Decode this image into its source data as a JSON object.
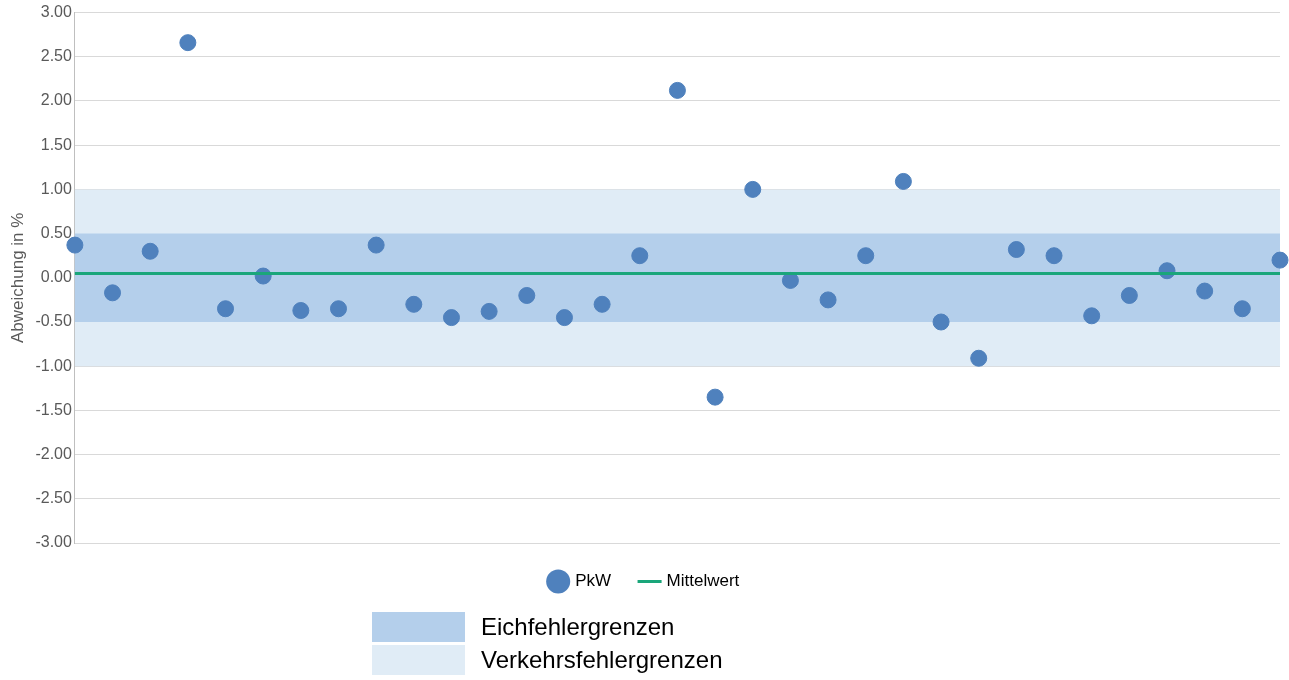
{
  "chart_data": {
    "type": "scatter",
    "ylabel": "Abweichung in %",
    "categories": [
      null,
      null,
      null,
      null,
      null,
      null,
      null,
      null,
      null,
      null,
      null,
      null,
      null,
      null,
      null,
      null,
      null,
      null,
      null,
      null,
      null,
      null,
      null,
      null,
      null,
      null,
      null,
      null,
      null,
      null,
      null,
      null,
      null
    ],
    "series": [
      {
        "name": "PkW",
        "color": "#4f81bd",
        "marker": "circle",
        "values": [
          0.37,
          -0.17,
          0.3,
          2.66,
          -0.35,
          0.02,
          -0.37,
          -0.35,
          0.37,
          -0.3,
          -0.45,
          -0.38,
          -0.2,
          -0.45,
          -0.3,
          0.25,
          2.12,
          -1.35,
          1.0,
          -0.03,
          -0.25,
          0.25,
          1.09,
          -0.5,
          -0.91,
          0.32,
          0.25,
          -0.43,
          -0.2,
          0.08,
          -0.15,
          -0.35,
          0.2
        ]
      },
      {
        "name": "Mittelwert",
        "type": "line",
        "color": "#1aa67a",
        "marker": "none",
        "line_style": "solid",
        "values": [
          0.05,
          0.05,
          0.05,
          0.05,
          0.05,
          0.05,
          0.05,
          0.05,
          0.05,
          0.05,
          0.05,
          0.05,
          0.05,
          0.05,
          0.05,
          0.05,
          0.05,
          0.05,
          0.05,
          0.05,
          0.05,
          0.05,
          0.05,
          0.05,
          0.05,
          0.05,
          0.05,
          0.05,
          0.05,
          0.05,
          0.05,
          0.05,
          0.05
        ]
      }
    ],
    "bands": [
      {
        "axis": "y",
        "from": -0.5,
        "to": 0.5,
        "label": "Eichfehlergrenzen",
        "color": "#b4cfeb"
      },
      {
        "axis": "y",
        "from": -1,
        "to": 1,
        "label": "Verkehrsfehlergrenzen",
        "color": "#e0ecf6"
      }
    ],
    "ylim": [
      -3,
      3
    ],
    "yticks": [
      {
        "value": -3,
        "label": "-3.00"
      },
      {
        "value": -2.5,
        "label": "-2.50"
      },
      {
        "value": -2,
        "label": "-2.00"
      },
      {
        "value": -1.5,
        "label": "-1.50"
      },
      {
        "value": -1,
        "label": "-1.00"
      },
      {
        "value": -0.5,
        "label": "-0.50"
      },
      {
        "value": 0,
        "label": "0.00"
      },
      {
        "value": 0.5,
        "label": "0.50"
      },
      {
        "value": 1,
        "label": "1.00"
      },
      {
        "value": 1.5,
        "label": "1.50"
      },
      {
        "value": 2,
        "label": "2.00"
      },
      {
        "value": 2.5,
        "label": "2.50"
      },
      {
        "value": 3,
        "label": "3.00"
      }
    ],
    "grid": "y",
    "legend": "bottom",
    "tick_labels": "y"
  }
}
